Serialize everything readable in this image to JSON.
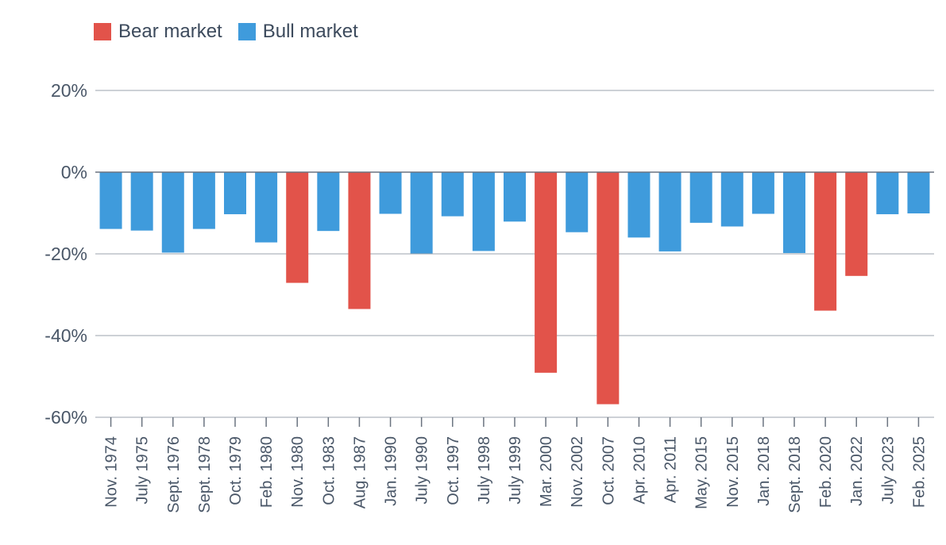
{
  "legend": {
    "bear_label": "Bear market",
    "bull_label": "Bull market"
  },
  "colors": {
    "bear": "#e2534a",
    "bull": "#3f9bdc",
    "grid": "#9ba3ad",
    "axis": "#6b7480"
  },
  "chart_data": {
    "type": "bar",
    "title": "",
    "xlabel": "",
    "ylabel": "",
    "ylim": [
      -60,
      20
    ],
    "yticks": [
      20,
      0,
      -20,
      -40,
      -60
    ],
    "ytick_labels": [
      "20%",
      "0%",
      "-20%",
      "-40%",
      "-60%"
    ],
    "grid": true,
    "legend_position": "top-left",
    "categories": [
      "Nov. 1974",
      "July 1975",
      "Sept. 1976",
      "Sept. 1978",
      "Oct. 1979",
      "Feb. 1980",
      "Nov. 1980",
      "Oct. 1983",
      "Aug. 1987",
      "Jan. 1990",
      "July 1990",
      "Oct. 1997",
      "July 1998",
      "July 1999",
      "Mar. 2000",
      "Nov. 2002",
      "Oct. 2007",
      "Apr. 2010",
      "Apr. 2011",
      "May. 2015",
      "Nov. 2015",
      "Jan. 2018",
      "Sept. 2018",
      "Feb. 2020",
      "Jan. 2022",
      "July 2023",
      "Feb. 2025"
    ],
    "values": [
      -13.9,
      -14.3,
      -19.7,
      -13.9,
      -10.3,
      -17.2,
      -27.1,
      -14.4,
      -33.5,
      -10.2,
      -19.9,
      -10.8,
      -19.3,
      -12.1,
      -49.1,
      -14.7,
      -56.8,
      -16.0,
      -19.4,
      -12.4,
      -13.3,
      -10.2,
      -19.8,
      -33.9,
      -25.4,
      -10.3,
      -10.1
    ],
    "market": [
      "bull",
      "bull",
      "bull",
      "bull",
      "bull",
      "bull",
      "bear",
      "bull",
      "bear",
      "bull",
      "bull",
      "bull",
      "bull",
      "bull",
      "bear",
      "bull",
      "bear",
      "bull",
      "bull",
      "bull",
      "bull",
      "bull",
      "bull",
      "bear",
      "bear",
      "bull",
      "bull"
    ]
  }
}
